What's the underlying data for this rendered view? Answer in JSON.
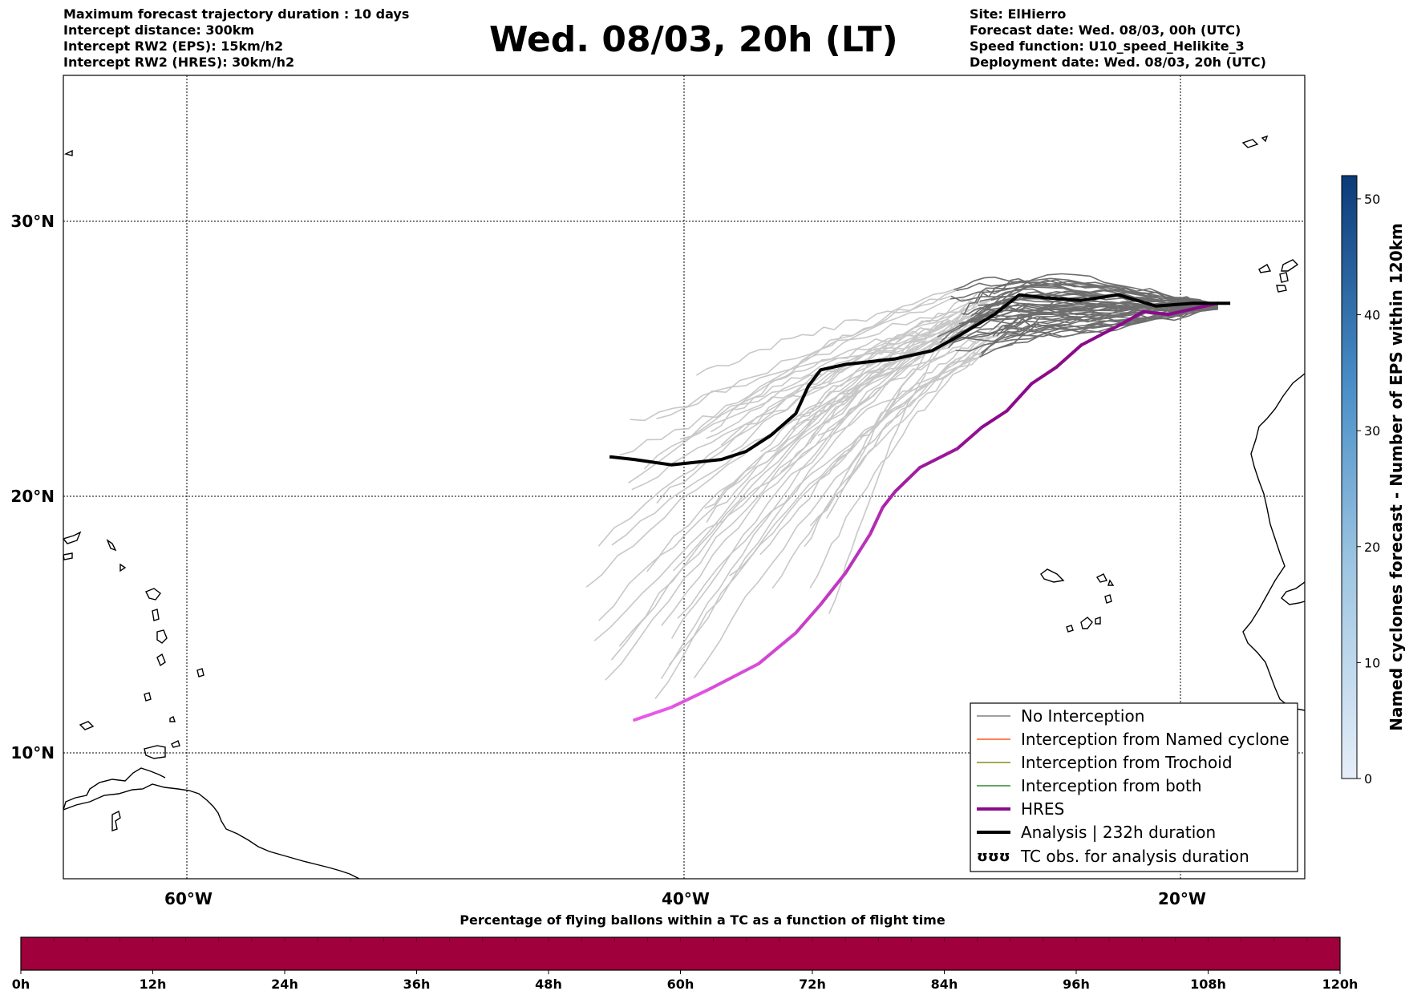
{
  "header": {
    "left_lines": [
      "Maximum forecast trajectory duration : 10 days",
      "Intercept distance: 300km",
      "Intercept RW2 (EPS):  15km/h2",
      "Intercept RW2 (HRES): 30km/h2"
    ],
    "title": "Wed. 08/03, 20h (LT)",
    "right_lines": [
      "Site: ElHierro",
      "Forecast date: Wed. 08/03, 00h (UTC)",
      "Speed function: U10_speed_Helikite_3",
      "Deployment date: Wed. 08/03, 20h (UTC)"
    ]
  },
  "map": {
    "lat_labels": [
      "30°N",
      "20°N",
      "10°N"
    ],
    "lon_labels": [
      "60°W",
      "40°W",
      "20°W"
    ],
    "grid": true,
    "extent": {
      "lon_min": -65,
      "lon_max": -15,
      "lat_min": 5.5,
      "lat_max": 35.3
    }
  },
  "legend": {
    "placement": "lower-right",
    "items": [
      {
        "label": "No Interception",
        "color": "#808080",
        "style": "thin"
      },
      {
        "label": "Interception from Named cyclone",
        "color": "#ff5a1e",
        "style": "thin"
      },
      {
        "label": "Interception from Trochoid",
        "color": "#8a8a1e",
        "style": "thin"
      },
      {
        "label": "Interception from both",
        "color": "#2e8b2e",
        "style": "thin"
      },
      {
        "label": "HRES",
        "color": "#8b0a8b",
        "style": "thick"
      },
      {
        "label": "Analysis | 232h duration",
        "color": "#000000",
        "style": "thick"
      },
      {
        "label": "TC obs. for analysis duration",
        "color": "#000000",
        "style": "symbol",
        "symbol": "ʊʊʊ"
      }
    ]
  },
  "vertical_colorbar": {
    "label": "Named cyclones forecast - Number of EPS within 120km",
    "ticks": [
      "0",
      "10",
      "20",
      "30",
      "40",
      "50"
    ],
    "min": 0,
    "max": 52,
    "color_low": "#e6eef9",
    "color_high": "#0b3a78"
  },
  "bottom_colorbar": {
    "title": "Percentage of flying ballons within a TC as a function of flight time",
    "ticks": [
      "0h",
      "12h",
      "24h",
      "36h",
      "48h",
      "60h",
      "72h",
      "84h",
      "96h",
      "108h",
      "120h"
    ],
    "fill_color": "#a0003c"
  },
  "tracks": {
    "analysis": {
      "color": "#000000",
      "points": [
        [
          -18,
          27.5
        ],
        [
          -19.5,
          27.5
        ],
        [
          -21,
          27.4
        ],
        [
          -22.5,
          27.8
        ],
        [
          -24,
          27.6
        ],
        [
          -25.5,
          27.7
        ],
        [
          -26.5,
          27.8
        ],
        [
          -27.5,
          27.1
        ],
        [
          -29,
          26.3
        ],
        [
          -30,
          25.8
        ],
        [
          -31.5,
          25.5
        ],
        [
          -33.5,
          25.3
        ],
        [
          -34.5,
          25.1
        ],
        [
          -35,
          24.5
        ],
        [
          -35.5,
          23.5
        ],
        [
          -36.5,
          22.7
        ],
        [
          -37.5,
          22.1
        ],
        [
          -38.5,
          21.8
        ],
        [
          -40.5,
          21.6
        ],
        [
          -42,
          21.8
        ],
        [
          -43,
          21.9
        ]
      ]
    },
    "hres": {
      "color_start": "#8b0a8b",
      "color_end": "#f060f0",
      "points": [
        [
          -18.5,
          27.5
        ],
        [
          -19.5,
          27.3
        ],
        [
          -20.5,
          27.1
        ],
        [
          -21.5,
          27.2
        ],
        [
          -22.5,
          26.7
        ],
        [
          -24,
          26.0
        ],
        [
          -25,
          25.2
        ],
        [
          -26,
          24.6
        ],
        [
          -27,
          23.6
        ],
        [
          -28,
          23.0
        ],
        [
          -29,
          22.2
        ],
        [
          -30.5,
          21.5
        ],
        [
          -31.5,
          20.6
        ],
        [
          -32,
          20.0
        ],
        [
          -32.5,
          19.0
        ],
        [
          -33.5,
          17.5
        ],
        [
          -34.5,
          16.3
        ],
        [
          -35.5,
          15.2
        ],
        [
          -37,
          14.0
        ],
        [
          -39,
          13.0
        ],
        [
          -40.5,
          12.3
        ],
        [
          -42,
          11.8
        ]
      ]
    }
  }
}
